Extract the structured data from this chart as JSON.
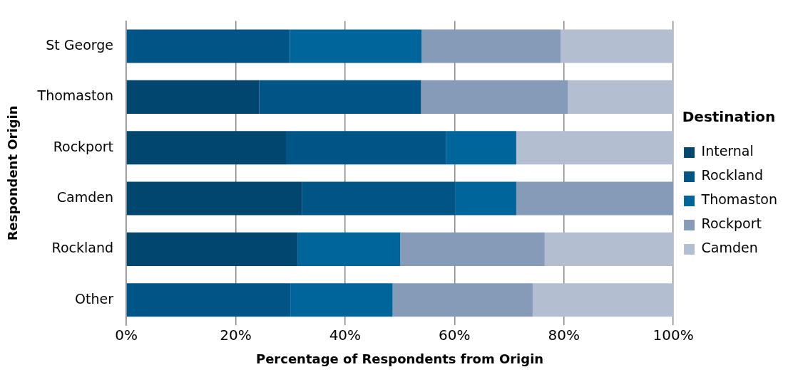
{
  "chart_data": {
    "type": "bar",
    "orientation": "horizontal",
    "stacked": true,
    "xlabel": "Percentage of Respondents from Origin",
    "ylabel": "Respondent Origin",
    "legend_title": "Destination",
    "legend": "right",
    "grid": "x",
    "categories": [
      "St George",
      "Thomaston",
      "Rockport",
      "Camden",
      "Rockland",
      "Other"
    ],
    "series": [
      {
        "name": "Internal",
        "color": "#00466e",
        "values": [
          null,
          24.3,
          29.2,
          32.1,
          31.3,
          null
        ]
      },
      {
        "name": "Rockland",
        "color": "#005587",
        "values": [
          29.9,
          29.6,
          29.3,
          28.1,
          null,
          30.0
        ]
      },
      {
        "name": "Thomaston",
        "color": "#00659b",
        "values": [
          24.1,
          null,
          12.8,
          11.1,
          18.8,
          18.7
        ]
      },
      {
        "name": "Rockport",
        "color": "#869bb7",
        "values": [
          25.4,
          26.8,
          null,
          28.7,
          26.4,
          25.6
        ]
      },
      {
        "name": "Camden",
        "color": "#b3bfd0",
        "values": [
          20.6,
          19.3,
          28.7,
          null,
          23.5,
          25.7
        ]
      }
    ],
    "xlim": [
      0,
      100
    ],
    "xticks": [
      {
        "value": 0,
        "label": "0%"
      },
      {
        "value": 20,
        "label": "20%"
      },
      {
        "value": 40,
        "label": "40%"
      },
      {
        "value": 60,
        "label": "60%"
      },
      {
        "value": 80,
        "label": "80%"
      },
      {
        "value": 100,
        "label": "100%"
      }
    ]
  }
}
